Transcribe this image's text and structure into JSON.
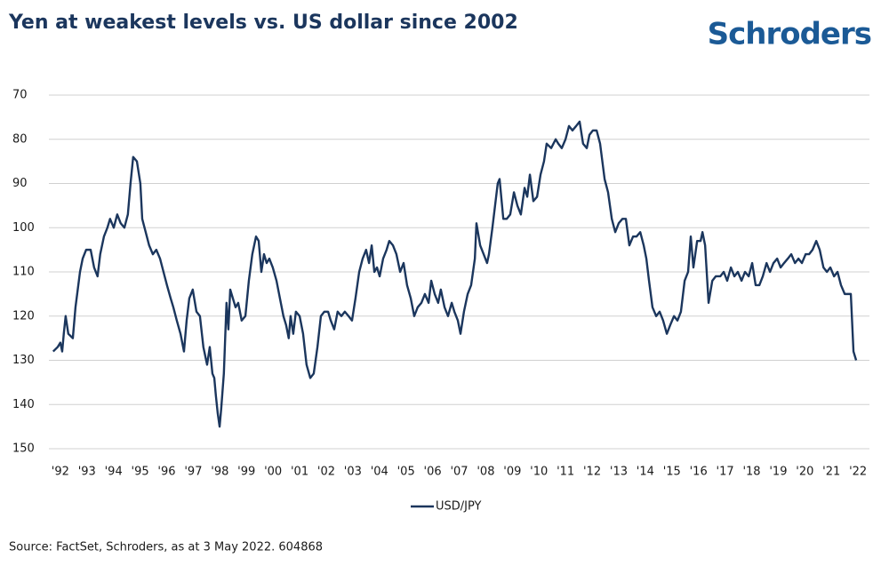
{
  "chart_data": {
    "type": "line",
    "title": "Yen at weakest levels vs. US dollar since 2002",
    "logo": "Schroders",
    "source": "Source: FactSet, Schroders, as at 3 May 2022. 604868",
    "y_inverted": true,
    "grid": true,
    "legend": "bottom",
    "xlim": [
      1991.57,
      2022.43
    ],
    "ylim": [
      70,
      150
    ],
    "yticks": [
      70,
      80,
      90,
      100,
      110,
      120,
      130,
      140,
      150
    ],
    "xticks": [
      {
        "value": 1992,
        "label": "'92"
      },
      {
        "value": 1993,
        "label": "'93"
      },
      {
        "value": 1994,
        "label": "'94"
      },
      {
        "value": 1995,
        "label": "'95"
      },
      {
        "value": 1996,
        "label": "'96"
      },
      {
        "value": 1997,
        "label": "'97"
      },
      {
        "value": 1998,
        "label": "'98"
      },
      {
        "value": 1999,
        "label": "'99"
      },
      {
        "value": 2000,
        "label": "'00"
      },
      {
        "value": 2001,
        "label": "'01"
      },
      {
        "value": 2002,
        "label": "'02"
      },
      {
        "value": 2003,
        "label": "'03"
      },
      {
        "value": 2004,
        "label": "'04"
      },
      {
        "value": 2005,
        "label": "'05"
      },
      {
        "value": 2006,
        "label": "'06"
      },
      {
        "value": 2007,
        "label": "'07"
      },
      {
        "value": 2008,
        "label": "'08"
      },
      {
        "value": 2009,
        "label": "'09"
      },
      {
        "value": 2010,
        "label": "'10"
      },
      {
        "value": 2011,
        "label": "'11"
      },
      {
        "value": 2012,
        "label": "'12"
      },
      {
        "value": 2013,
        "label": "'13"
      },
      {
        "value": 2014,
        "label": "'14"
      },
      {
        "value": 2015,
        "label": "'15"
      },
      {
        "value": 2016,
        "label": "'16"
      },
      {
        "value": 2017,
        "label": "'17"
      },
      {
        "value": 2018,
        "label": "'18"
      },
      {
        "value": 2019,
        "label": "'19"
      },
      {
        "value": 2020,
        "label": "'20"
      },
      {
        "value": 2021,
        "label": "'21"
      },
      {
        "value": 2022,
        "label": "'22"
      }
    ],
    "x": [
      1991.73,
      1991.9,
      1992.0,
      1992.07,
      1992.13,
      1992.2,
      1992.3,
      1992.47,
      1992.57,
      1992.74,
      1992.84,
      1992.97,
      1993.14,
      1993.27,
      1993.4,
      1993.5,
      1993.64,
      1993.77,
      1993.87,
      1994.01,
      1994.14,
      1994.27,
      1994.41,
      1994.54,
      1994.64,
      1994.74,
      1994.88,
      1995.01,
      1995.08,
      1995.21,
      1995.34,
      1995.48,
      1995.61,
      1995.75,
      1995.88,
      1996.01,
      1996.15,
      1996.25,
      1996.38,
      1996.52,
      1996.65,
      1996.75,
      1996.85,
      1996.98,
      1997.12,
      1997.25,
      1997.38,
      1997.52,
      1997.62,
      1997.72,
      1997.79,
      1997.85,
      1997.92,
      1997.99,
      1998.05,
      1998.15,
      1998.25,
      1998.32,
      1998.39,
      1998.49,
      1998.59,
      1998.69,
      1998.82,
      1998.96,
      1999.09,
      1999.22,
      1999.36,
      1999.46,
      1999.56,
      1999.66,
      1999.76,
      1999.86,
      1999.99,
      2000.13,
      2000.26,
      2000.39,
      2000.49,
      2000.59,
      2000.66,
      2000.76,
      2000.86,
      2001.0,
      2001.13,
      2001.26,
      2001.4,
      2001.53,
      2001.67,
      2001.8,
      2001.93,
      2002.07,
      2002.17,
      2002.3,
      2002.43,
      2002.57,
      2002.7,
      2002.84,
      2002.97,
      2003.1,
      2003.24,
      2003.37,
      2003.5,
      2003.61,
      2003.71,
      2003.81,
      2003.91,
      2004.01,
      2004.14,
      2004.27,
      2004.37,
      2004.51,
      2004.64,
      2004.78,
      2004.91,
      2005.04,
      2005.18,
      2005.31,
      2005.44,
      2005.58,
      2005.71,
      2005.85,
      2005.95,
      2006.08,
      2006.21,
      2006.31,
      2006.45,
      2006.58,
      2006.72,
      2006.82,
      2006.95,
      2007.05,
      2007.18,
      2007.32,
      2007.45,
      2007.59,
      2007.65,
      2007.79,
      2007.92,
      2008.05,
      2008.12,
      2008.25,
      2008.35,
      2008.45,
      2008.52,
      2008.66,
      2008.79,
      2008.92,
      2009.06,
      2009.19,
      2009.32,
      2009.46,
      2009.56,
      2009.66,
      2009.79,
      2009.93,
      2010.06,
      2010.19,
      2010.29,
      2010.46,
      2010.63,
      2010.73,
      2010.86,
      2011.0,
      2011.13,
      2011.26,
      2011.4,
      2011.53,
      2011.66,
      2011.8,
      2011.9,
      2012.03,
      2012.17,
      2012.3,
      2012.47,
      2012.6,
      2012.74,
      2012.87,
      2013.0,
      2013.14,
      2013.27,
      2013.4,
      2013.54,
      2013.67,
      2013.81,
      2013.94,
      2014.04,
      2014.14,
      2014.27,
      2014.41,
      2014.54,
      2014.67,
      2014.81,
      2014.94,
      2015.08,
      2015.21,
      2015.34,
      2015.48,
      2015.61,
      2015.71,
      2015.81,
      2015.95,
      2016.08,
      2016.15,
      2016.25,
      2016.38,
      2016.52,
      2016.65,
      2016.82,
      2016.95,
      2017.08,
      2017.22,
      2017.35,
      2017.48,
      2017.62,
      2017.75,
      2017.89,
      2018.02,
      2018.15,
      2018.29,
      2018.42,
      2018.56,
      2018.69,
      2018.82,
      2018.96,
      2019.09,
      2019.22,
      2019.36,
      2019.49,
      2019.63,
      2019.76,
      2019.89,
      2020.03,
      2020.16,
      2020.29,
      2020.43,
      2020.56,
      2020.7,
      2020.83,
      2020.96,
      2021.1,
      2021.23,
      2021.36,
      2021.5,
      2021.63,
      2021.73,
      2021.83,
      2021.93
    ],
    "series": [
      {
        "name": "USD/JPY",
        "color": "#1b365d",
        "values": [
          128,
          127,
          126,
          128,
          124,
          120,
          124,
          125,
          118,
          110,
          107,
          105,
          105,
          109,
          111,
          106,
          102,
          100,
          98,
          100,
          97,
          99,
          100,
          97,
          90,
          84,
          85,
          90,
          98,
          101,
          104,
          106,
          105,
          107,
          110,
          113,
          116,
          118,
          121,
          124,
          128,
          121,
          116,
          114,
          119,
          120,
          127,
          131,
          127,
          133,
          134,
          138,
          142,
          145,
          141,
          133,
          117,
          123,
          114,
          116,
          118,
          117,
          121,
          120,
          112,
          106,
          102,
          103,
          110,
          106,
          108,
          107,
          109,
          112,
          116,
          120,
          122,
          125,
          120,
          124,
          119,
          120,
          124,
          131,
          134,
          133,
          127,
          120,
          119,
          119,
          121,
          123,
          119,
          120,
          119,
          120,
          121,
          116,
          110,
          107,
          105,
          108,
          104,
          110,
          109,
          111,
          107,
          105,
          103,
          104,
          106,
          110,
          108,
          113,
          116,
          120,
          118,
          117,
          115,
          117,
          112,
          115,
          117,
          114,
          118,
          120,
          117,
          119,
          121,
          124,
          119,
          115,
          113,
          107,
          99,
          104,
          106,
          108,
          106,
          100,
          95,
          90,
          89,
          98,
          98,
          97,
          92,
          95,
          97,
          91,
          93,
          88,
          94,
          93,
          88,
          85,
          81,
          82,
          80,
          81,
          82,
          80,
          77,
          78,
          77,
          76,
          81,
          82,
          79,
          78,
          78,
          81,
          89,
          92,
          98,
          101,
          99,
          98,
          98,
          104,
          102,
          102,
          101,
          104,
          107,
          112,
          118,
          120,
          119,
          121,
          124,
          122,
          120,
          121,
          119,
          112,
          110,
          102,
          109,
          103,
          103,
          101,
          104,
          117,
          112,
          111,
          111,
          110,
          112,
          109,
          111,
          110,
          112,
          110,
          111,
          108,
          113,
          113,
          111,
          108,
          110,
          108,
          107,
          109,
          108,
          107,
          106,
          108,
          107,
          108,
          106,
          106,
          105,
          103,
          105,
          109,
          110,
          109,
          111,
          110,
          113,
          115,
          115,
          115,
          128,
          130
        ]
      }
    ]
  }
}
